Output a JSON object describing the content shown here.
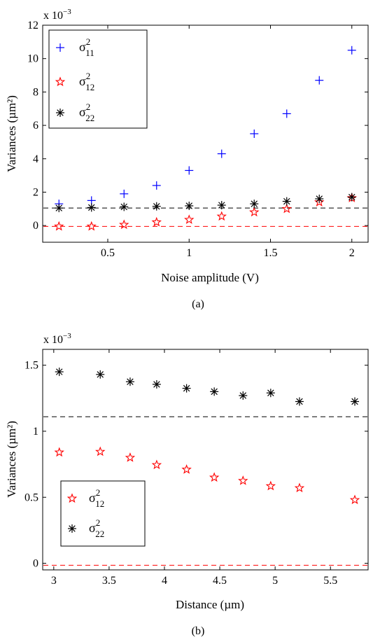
{
  "chart_data": [
    {
      "type": "scatter",
      "caption": "(a)",
      "scale_label": "x 10",
      "scale_exp": "−3",
      "xlabel": "Noise amplitude (V)",
      "ylabel": "Variances (µm²)",
      "xlim": [
        0.1,
        2.1
      ],
      "ylim": [
        -1,
        12
      ],
      "xticks": [
        {
          "v": 0.5,
          "label": "0.5"
        },
        {
          "v": 1,
          "label": "1"
        },
        {
          "v": 1.5,
          "label": "1.5"
        },
        {
          "v": 2,
          "label": "2"
        }
      ],
      "yticks": [
        {
          "v": 0,
          "label": "0"
        },
        {
          "v": 2,
          "label": "2"
        },
        {
          "v": 4,
          "label": "4"
        },
        {
          "v": 6,
          "label": "6"
        },
        {
          "v": 8,
          "label": "8"
        },
        {
          "v": 10,
          "label": "10"
        },
        {
          "v": 12,
          "label": "12"
        }
      ],
      "legend_position": "top-left",
      "series": [
        {
          "name": "σ11",
          "legend_base": "σ",
          "legend_sup": "2",
          "legend_sub": "11",
          "marker": "plus",
          "color": "#0000ff",
          "x": [
            0.2,
            0.4,
            0.6,
            0.8,
            1.0,
            1.2,
            1.4,
            1.6,
            1.8,
            2.0
          ],
          "y": [
            1.3,
            1.5,
            1.9,
            2.4,
            3.3,
            4.3,
            5.5,
            6.7,
            8.7,
            10.5
          ]
        },
        {
          "name": "σ12",
          "legend_base": "σ",
          "legend_sup": "2",
          "legend_sub": "12",
          "marker": "star5",
          "color": "#ff0000",
          "x": [
            0.2,
            0.4,
            0.6,
            0.8,
            1.0,
            1.2,
            1.4,
            1.6,
            1.8,
            2.0
          ],
          "y": [
            -0.05,
            -0.05,
            0.05,
            0.2,
            0.35,
            0.55,
            0.8,
            1.0,
            1.4,
            1.65
          ]
        },
        {
          "name": "σ22",
          "legend_base": "σ",
          "legend_sup": "2",
          "legend_sub": "22",
          "marker": "asterisk",
          "color": "#000000",
          "x": [
            0.2,
            0.4,
            0.6,
            0.8,
            1.0,
            1.2,
            1.4,
            1.6,
            1.8,
            2.0
          ],
          "y": [
            1.05,
            1.08,
            1.12,
            1.15,
            1.18,
            1.22,
            1.3,
            1.45,
            1.6,
            1.7
          ]
        }
      ],
      "reference_lines": [
        {
          "y": 1.05,
          "color": "#000000",
          "style": "dashed"
        },
        {
          "y": -0.05,
          "color": "#ff0000",
          "style": "dashed"
        }
      ]
    },
    {
      "type": "scatter",
      "caption": "(b)",
      "scale_label": "x 10",
      "scale_exp": "−3",
      "xlabel": "Distance (µm)",
      "ylabel": "Variances (µm²)",
      "xlim": [
        2.9,
        5.84
      ],
      "ylim": [
        -0.05,
        1.62
      ],
      "xticks": [
        {
          "v": 3,
          "label": "3"
        },
        {
          "v": 3.5,
          "label": "3.5"
        },
        {
          "v": 4,
          "label": "4"
        },
        {
          "v": 4.5,
          "label": "4.5"
        },
        {
          "v": 5,
          "label": "5"
        },
        {
          "v": 5.5,
          "label": "5.5"
        }
      ],
      "yticks": [
        {
          "v": 0,
          "label": "0"
        },
        {
          "v": 0.5,
          "label": "0.5"
        },
        {
          "v": 1,
          "label": "1"
        },
        {
          "v": 1.5,
          "label": "1.5"
        }
      ],
      "legend_position": "bottom-left",
      "series": [
        {
          "name": "σ12",
          "legend_base": "σ",
          "legend_sup": "2",
          "legend_sub": "12",
          "marker": "star5",
          "color": "#ff0000",
          "x": [
            3.05,
            3.42,
            3.69,
            3.93,
            4.2,
            4.45,
            4.71,
            4.96,
            5.22,
            5.72
          ],
          "y": [
            0.84,
            0.845,
            0.8,
            0.745,
            0.71,
            0.65,
            0.625,
            0.585,
            0.57,
            0.48
          ]
        },
        {
          "name": "σ22",
          "legend_base": "σ",
          "legend_sup": "2",
          "legend_sub": "22",
          "marker": "asterisk",
          "color": "#000000",
          "x": [
            3.05,
            3.42,
            3.69,
            3.93,
            4.2,
            4.45,
            4.71,
            4.96,
            5.22,
            5.72
          ],
          "y": [
            1.45,
            1.43,
            1.375,
            1.355,
            1.325,
            1.3,
            1.27,
            1.29,
            1.225,
            1.225
          ]
        }
      ],
      "reference_lines": [
        {
          "y": 1.11,
          "color": "#000000",
          "style": "dashed"
        },
        {
          "y": -0.015,
          "color": "#ff0000",
          "style": "dashed"
        }
      ]
    }
  ]
}
